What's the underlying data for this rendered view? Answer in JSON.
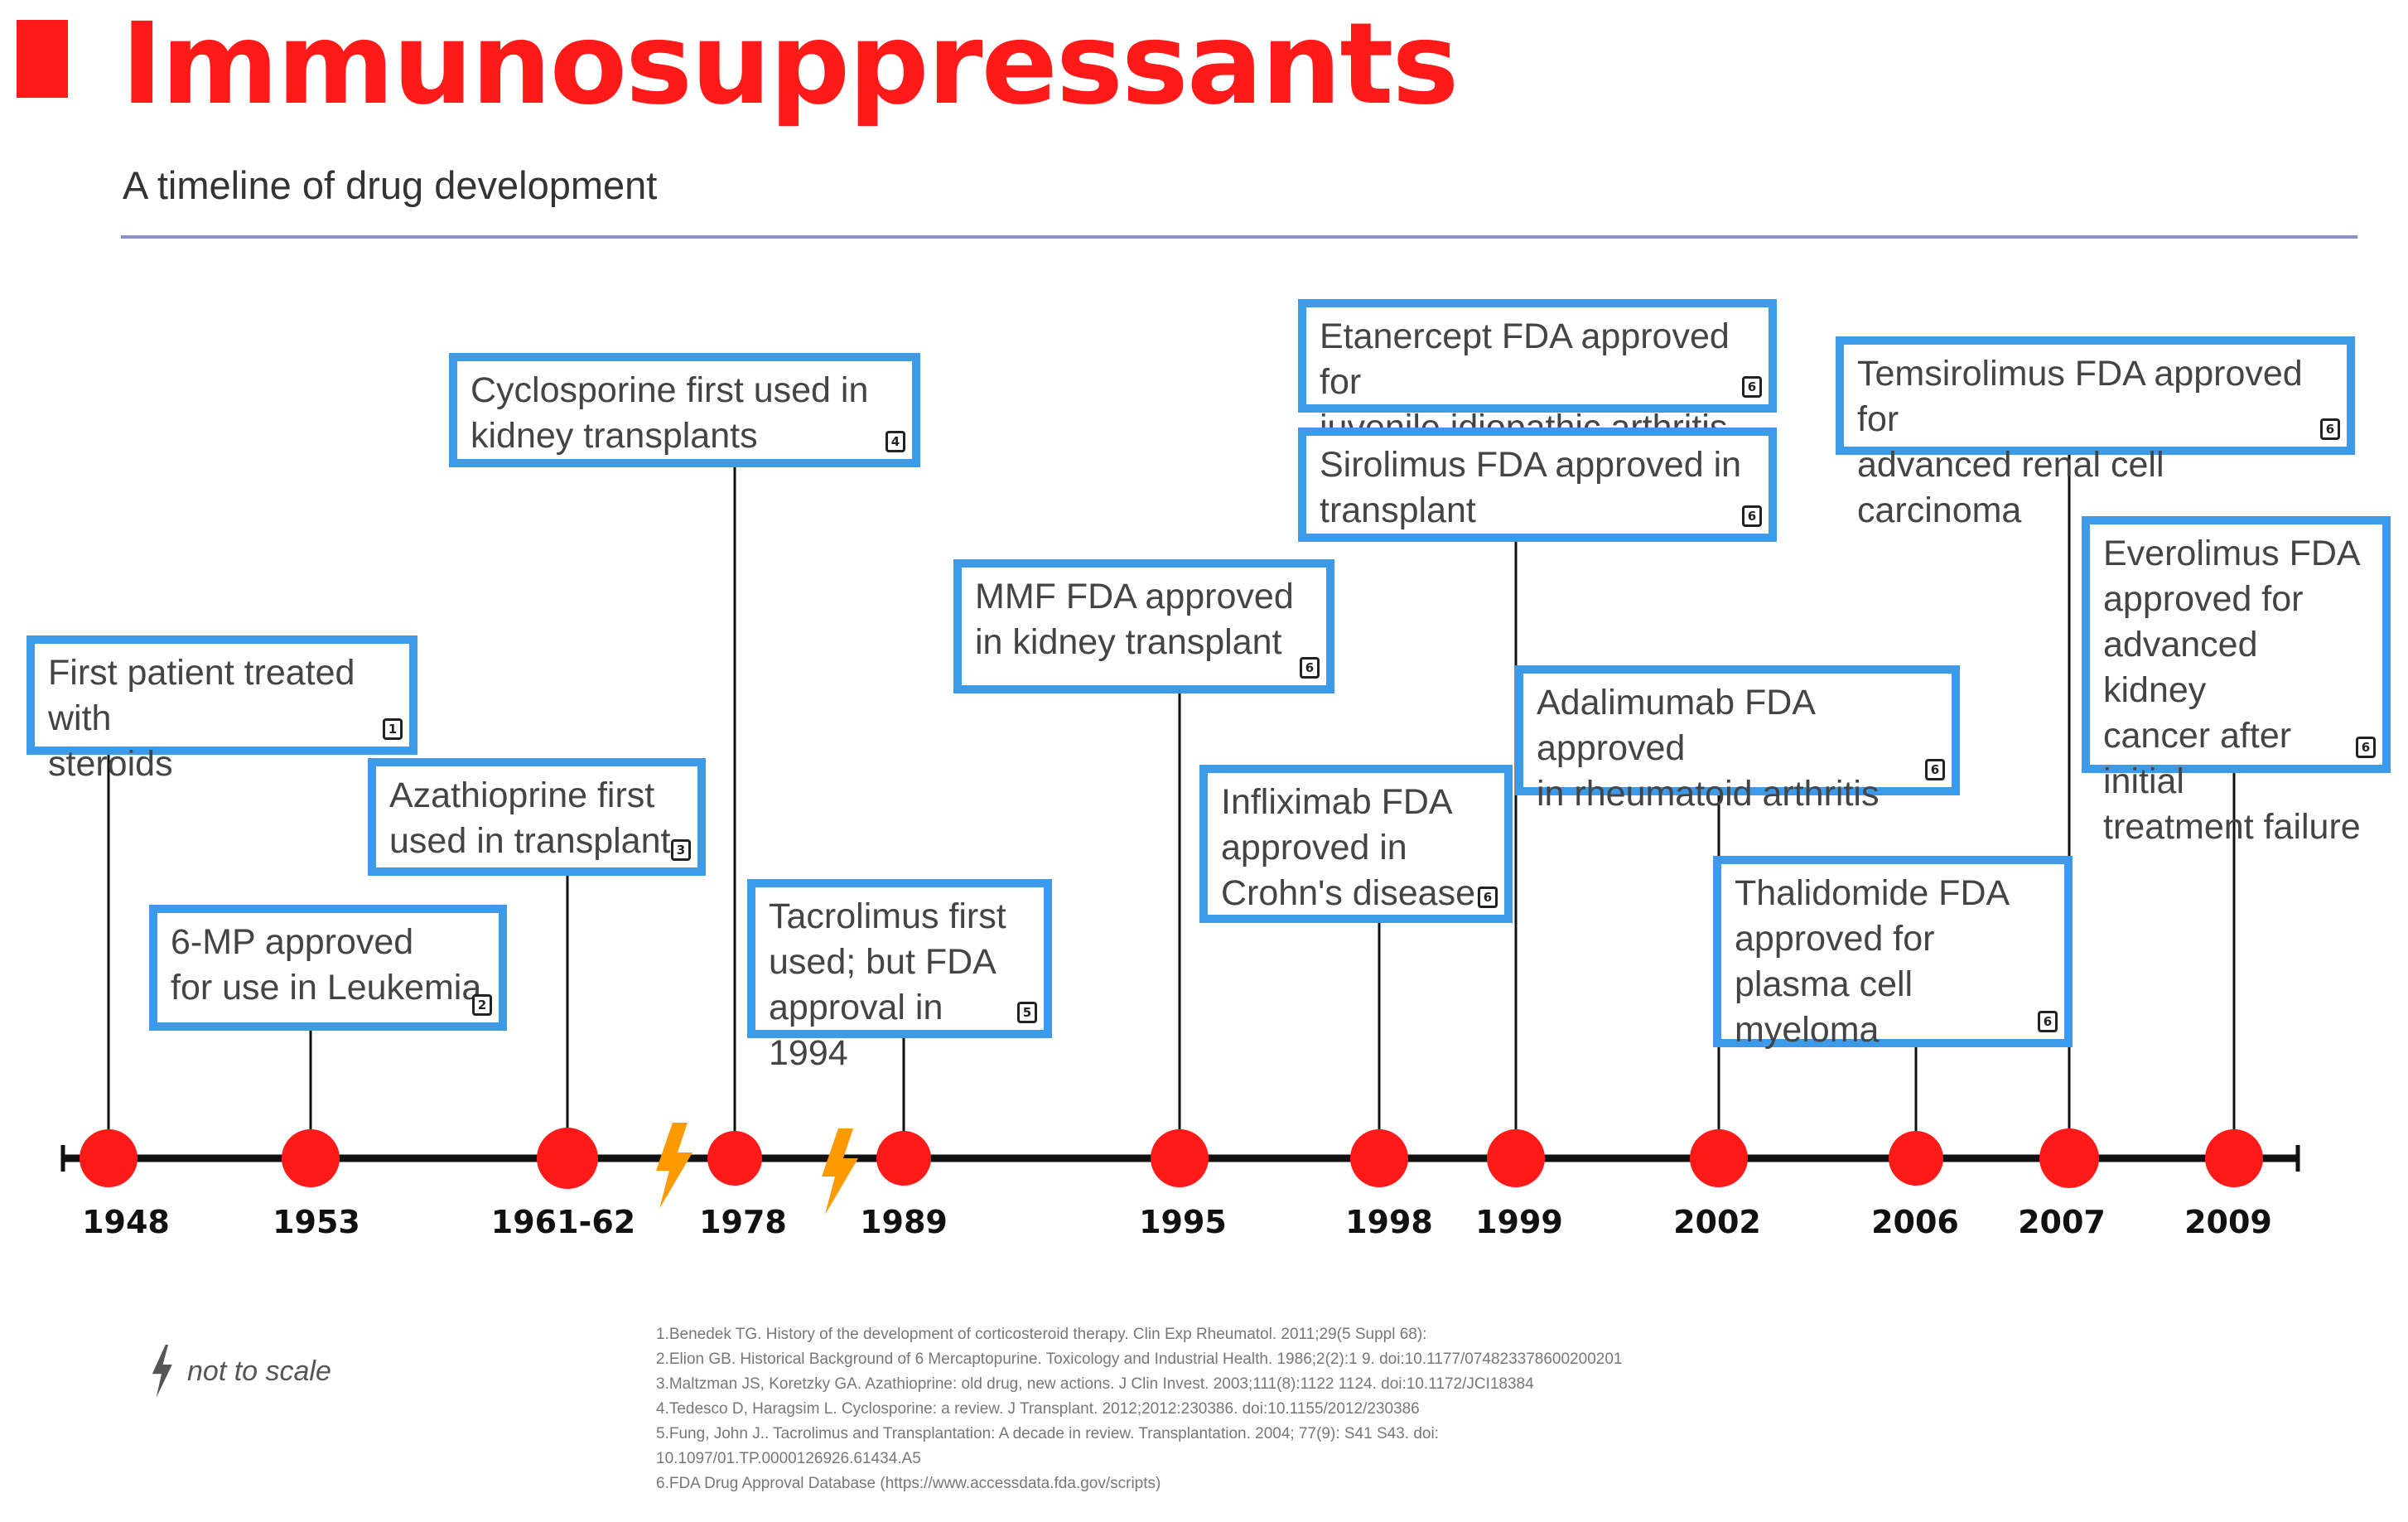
{
  "title": "Immunosuppressants",
  "subtitle": "A timeline of drug development",
  "colors": {
    "title": "#ff1a1a",
    "box_border": "#3d9ae8",
    "dot": "#ff1a1a",
    "bolt": "#ff9900",
    "rule": "#8f8fd0"
  },
  "years": [
    "1948",
    "1953",
    "1961-62",
    "1978",
    "1989",
    "1995",
    "1998",
    "1999",
    "2002",
    "2006",
    "2007",
    "2009"
  ],
  "events": [
    {
      "text": "First patient treated with\nsteroids",
      "ref": "1"
    },
    {
      "text": "6-MP approved\nfor use in Leukemia",
      "ref": "2"
    },
    {
      "text": "Azathioprine first\nused in transplant",
      "ref": "3"
    },
    {
      "text": "Cyclosporine first used in\nkidney transplants",
      "ref": "4"
    },
    {
      "text": "Tacrolimus first\nused; but FDA\napproval in 1994",
      "ref": "5"
    },
    {
      "text": "MMF FDA approved\nin kidney transplant",
      "ref": "6"
    },
    {
      "text": "Infliximab FDA\napproved in\nCrohn's disease",
      "ref": "6"
    },
    {
      "text": "Etanercept FDA approved for\njuvenile idiopathic arthritis",
      "ref": "6"
    },
    {
      "text": "Sirolimus FDA approved in\ntransplant",
      "ref": "6"
    },
    {
      "text": "Adalimumab FDA approved\nin rheumatoid arthritis",
      "ref": "6"
    },
    {
      "text": "Thalidomide FDA\napproved for\nplasma cell myeloma",
      "ref": "6"
    },
    {
      "text": "Temsirolimus FDA approved for\nadvanced renal cell carcinoma",
      "ref": "6"
    },
    {
      "text": "Everolimus FDA\napproved for\nadvanced kidney\ncancer after initial\ntreatment failure",
      "ref": "6"
    }
  ],
  "scale_note": "not to scale",
  "references": [
    "1.Benedek TG. History of the development of corticosteroid therapy. Clin Exp Rheumatol. 2011;29(5 Suppl 68):",
    "2.Elion GB. Historical Background of 6 Mercaptopurine. Toxicology and Industrial Health. 1986;2(2):1 9. doi:10.1177/074823378600200201",
    "3.Maltzman JS, Koretzky GA. Azathioprine: old drug, new actions. J Clin Invest. 2003;111(8):1122 1124. doi:10.1172/JCI18384",
    "4.Tedesco D, Haragsim L. Cyclosporine: a review. J Transplant. 2012;2012:230386. doi:10.1155/2012/230386",
    "5.Fung, John J.. Tacrolimus and Transplantation: A decade in review. Transplantation. 2004; 77(9): S41 S43. doi:",
    "10.1097/01.TP.0000126926.61434.A5",
    "6.FDA Drug Approval Database (https://www.accessdata.fda.gov/scripts)"
  ]
}
